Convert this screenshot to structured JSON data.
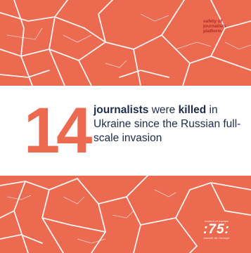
{
  "colors": {
    "accent": "#ec6a4f",
    "navy": "#1c2b4c",
    "logo_red": "#b4262a",
    "white": "#ffffff"
  },
  "logo": {
    "line1": "safety of",
    "line2": "journalists",
    "line3": "platform"
  },
  "headline": {
    "number": "14",
    "part1": "journalists",
    "part2": " were ",
    "part3": "killed",
    "part4": " in Ukraine since the Russian full-scale invasion"
  },
  "badge": {
    "top": "council of europe",
    "number": ":75:",
    "bottom": "conseil de l'europe"
  }
}
